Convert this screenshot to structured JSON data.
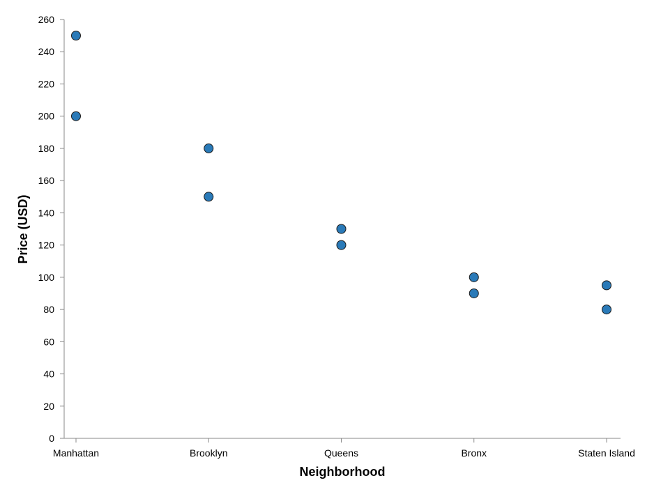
{
  "chart_data": {
    "type": "scatter",
    "title": "",
    "xlabel": "Neighborhood",
    "ylabel": "Price (USD)",
    "categories": [
      "Manhattan",
      "Brooklyn",
      "Queens",
      "Bronx",
      "Staten Island"
    ],
    "ylim": [
      0,
      260
    ],
    "yticks": [
      0,
      20,
      40,
      60,
      80,
      100,
      120,
      140,
      160,
      180,
      200,
      220,
      240,
      260
    ],
    "grid": false,
    "series": [
      {
        "marker_color": "#2a7ab8",
        "points": [
          {
            "x": "Manhattan",
            "y": 250
          },
          {
            "x": "Manhattan",
            "y": 200
          },
          {
            "x": "Brooklyn",
            "y": 180
          },
          {
            "x": "Brooklyn",
            "y": 150
          },
          {
            "x": "Queens",
            "y": 130
          },
          {
            "x": "Queens",
            "y": 120
          },
          {
            "x": "Bronx",
            "y": 100
          },
          {
            "x": "Bronx",
            "y": 90
          },
          {
            "x": "Staten Island",
            "y": 95
          },
          {
            "x": "Staten Island",
            "y": 80
          }
        ]
      }
    ]
  }
}
